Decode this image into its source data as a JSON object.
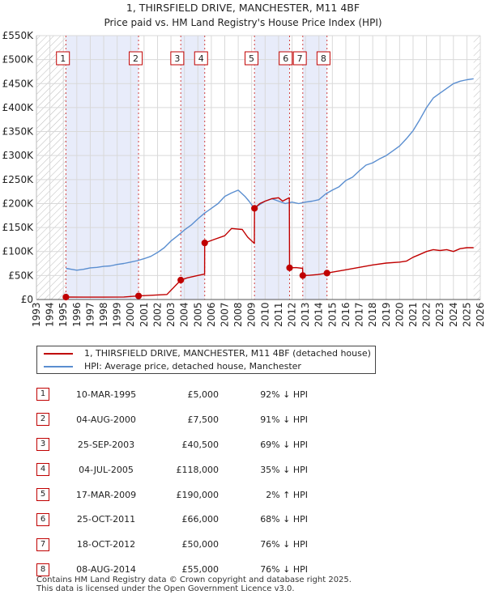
{
  "chart_data": {
    "type": "line",
    "title": "1, THIRSFIELD DRIVE, MANCHESTER, M11 4BF",
    "subtitle": "Price paid vs. HM Land Registry's House Price Index (HPI)",
    "x_range": [
      1993,
      2026
    ],
    "ylim": [
      0,
      550000
    ],
    "x_ticks": [
      "1993",
      "1994",
      "1995",
      "1996",
      "1997",
      "1998",
      "1999",
      "2000",
      "2001",
      "2002",
      "2003",
      "2004",
      "2005",
      "2006",
      "2007",
      "2008",
      "2009",
      "2010",
      "2011",
      "2012",
      "2013",
      "2014",
      "2015",
      "2016",
      "2017",
      "2018",
      "2019",
      "2020",
      "2021",
      "2022",
      "2023",
      "2024",
      "2025",
      "2026"
    ],
    "y_ticks": [
      {
        "value": 0,
        "label": "£0"
      },
      {
        "value": 50000,
        "label": "£50K"
      },
      {
        "value": 100000,
        "label": "£100K"
      },
      {
        "value": 150000,
        "label": "£150K"
      },
      {
        "value": 200000,
        "label": "£200K"
      },
      {
        "value": 250000,
        "label": "£250K"
      },
      {
        "value": 300000,
        "label": "£300K"
      },
      {
        "value": 350000,
        "label": "£350K"
      },
      {
        "value": 400000,
        "label": "£400K"
      },
      {
        "value": 450000,
        "label": "£450K"
      },
      {
        "value": 500000,
        "label": "£500K"
      },
      {
        "value": 550000,
        "label": "£550K"
      }
    ],
    "grid": true,
    "series": [
      {
        "name": "1, THIRSFIELD DRIVE, MANCHESTER, M11 4BF (detached house)",
        "color": "#c00000",
        "points": [
          [
            1995.19,
            5000
          ],
          [
            1996.5,
            4850
          ],
          [
            1998.0,
            4900
          ],
          [
            1999.5,
            5300
          ],
          [
            2000.59,
            7500
          ],
          [
            2001.5,
            8800
          ],
          [
            2002.7,
            10500
          ],
          [
            2003.73,
            40500
          ],
          [
            2004.2,
            45000
          ],
          [
            2004.9,
            49500
          ],
          [
            2005.5,
            53000
          ],
          [
            2005.51,
            118000
          ],
          [
            2006.2,
            125000
          ],
          [
            2007.0,
            133000
          ],
          [
            2007.5,
            148000
          ],
          [
            2008.3,
            146000
          ],
          [
            2008.7,
            130000
          ],
          [
            2009.2,
            117000
          ],
          [
            2009.21,
            190000
          ],
          [
            2009.6,
            200000
          ],
          [
            2010.0,
            205000
          ],
          [
            2010.5,
            210000
          ],
          [
            2011.0,
            212000
          ],
          [
            2011.3,
            205000
          ],
          [
            2011.5,
            208000
          ],
          [
            2011.8,
            212000
          ],
          [
            2011.82,
            66000
          ],
          [
            2012.3,
            66500
          ],
          [
            2012.79,
            65000
          ],
          [
            2012.8,
            50000
          ],
          [
            2013.3,
            50500
          ],
          [
            2013.9,
            52000
          ],
          [
            2014.6,
            55000
          ],
          [
            2015.0,
            57000
          ],
          [
            2016.0,
            62000
          ],
          [
            2017.0,
            67000
          ],
          [
            2018.0,
            72000
          ],
          [
            2019.0,
            76000
          ],
          [
            2020.0,
            78000
          ],
          [
            2020.5,
            80000
          ],
          [
            2021.0,
            88000
          ],
          [
            2021.5,
            94000
          ],
          [
            2022.0,
            100000
          ],
          [
            2022.5,
            104000
          ],
          [
            2023.0,
            102000
          ],
          [
            2023.5,
            104000
          ],
          [
            2024.0,
            100000
          ],
          [
            2024.5,
            106000
          ],
          [
            2025.0,
            108000
          ],
          [
            2025.5,
            108000
          ]
        ]
      },
      {
        "name": "HPI: Average price, detached house, Manchester",
        "color": "#5a8ed0",
        "points": [
          [
            1995.2,
            65000
          ],
          [
            1995.6,
            63000
          ],
          [
            1996.0,
            61000
          ],
          [
            1996.5,
            63000
          ],
          [
            1997.0,
            66000
          ],
          [
            1997.5,
            67000
          ],
          [
            1998.0,
            69000
          ],
          [
            1998.5,
            70000
          ],
          [
            1999.0,
            73000
          ],
          [
            1999.5,
            75000
          ],
          [
            2000.0,
            78000
          ],
          [
            2000.5,
            81000
          ],
          [
            2001.0,
            85000
          ],
          [
            2001.5,
            90000
          ],
          [
            2002.0,
            98000
          ],
          [
            2002.5,
            108000
          ],
          [
            2003.0,
            122000
          ],
          [
            2003.5,
            133000
          ],
          [
            2004.0,
            145000
          ],
          [
            2004.5,
            155000
          ],
          [
            2005.0,
            168000
          ],
          [
            2005.5,
            180000
          ],
          [
            2006.0,
            190000
          ],
          [
            2006.5,
            200000
          ],
          [
            2007.0,
            215000
          ],
          [
            2007.5,
            222000
          ],
          [
            2008.0,
            228000
          ],
          [
            2008.5,
            215000
          ],
          [
            2008.8,
            205000
          ],
          [
            2009.2,
            190000
          ],
          [
            2009.5,
            196000
          ],
          [
            2010.0,
            205000
          ],
          [
            2010.5,
            210000
          ],
          [
            2011.0,
            205000
          ],
          [
            2011.5,
            200000
          ],
          [
            2012.0,
            203000
          ],
          [
            2012.5,
            200000
          ],
          [
            2013.0,
            203000
          ],
          [
            2013.5,
            205000
          ],
          [
            2014.0,
            208000
          ],
          [
            2014.5,
            220000
          ],
          [
            2015.0,
            228000
          ],
          [
            2015.5,
            235000
          ],
          [
            2016.0,
            248000
          ],
          [
            2016.5,
            255000
          ],
          [
            2017.0,
            268000
          ],
          [
            2017.5,
            280000
          ],
          [
            2018.0,
            285000
          ],
          [
            2018.5,
            293000
          ],
          [
            2019.0,
            300000
          ],
          [
            2019.5,
            310000
          ],
          [
            2020.0,
            320000
          ],
          [
            2020.5,
            335000
          ],
          [
            2021.0,
            352000
          ],
          [
            2021.5,
            375000
          ],
          [
            2022.0,
            400000
          ],
          [
            2022.5,
            420000
          ],
          [
            2023.0,
            430000
          ],
          [
            2023.5,
            440000
          ],
          [
            2024.0,
            450000
          ],
          [
            2024.5,
            455000
          ],
          [
            2025.0,
            458000
          ],
          [
            2025.5,
            460000
          ]
        ]
      }
    ],
    "transactions": [
      {
        "num": "1",
        "date": "10-MAR-1995",
        "price": "£5,000",
        "hpi": "92% ↓ HPI",
        "x": 1995.19,
        "y": 5000,
        "label_year": 1994.97
      },
      {
        "num": "2",
        "date": "04-AUG-2000",
        "price": "£7,500",
        "hpi": "91% ↓ HPI",
        "x": 2000.59,
        "y": 7500,
        "label_year": 2000.38
      },
      {
        "num": "3",
        "date": "25-SEP-2003",
        "price": "£40,500",
        "hpi": "69% ↓ HPI",
        "x": 2003.73,
        "y": 40500,
        "label_year": 2003.47
      },
      {
        "num": "4",
        "date": "04-JUL-2005",
        "price": "£118,000",
        "hpi": "35% ↓ HPI",
        "x": 2005.51,
        "y": 118000,
        "label_year": 2005.24
      },
      {
        "num": "5",
        "date": "17-MAR-2009",
        "price": "£190,000",
        "hpi": "2% ↑ HPI",
        "x": 2009.21,
        "y": 190000,
        "label_year": 2008.99
      },
      {
        "num": "6",
        "date": "25-OCT-2011",
        "price": "£66,000",
        "hpi": "68% ↓ HPI",
        "x": 2011.82,
        "y": 66000,
        "label_year": 2011.53
      },
      {
        "num": "7",
        "date": "18-OCT-2012",
        "price": "£50,000",
        "hpi": "76% ↓ HPI",
        "x": 2012.8,
        "y": 50000,
        "label_year": 2012.58
      },
      {
        "num": "8",
        "date": "08-AUG-2014",
        "price": "£55,000",
        "hpi": "76% ↓ HPI",
        "x": 2014.6,
        "y": 55000,
        "label_year": 2014.34
      }
    ],
    "shaded_ranges": [
      [
        1995.19,
        2000.59
      ],
      [
        2003.73,
        2005.51
      ],
      [
        2009.21,
        2011.82
      ],
      [
        2012.8,
        2014.6
      ]
    ],
    "hatched_ranges": [
      [
        1993,
        1995.19
      ],
      [
        2025.5,
        2026
      ]
    ]
  },
  "legend": {
    "property_label": "1, THIRSFIELD DRIVE, MANCHESTER, M11 4BF (detached house)",
    "hpi_label": "HPI: Average price, detached house, Manchester",
    "property_color": "#c00000",
    "hpi_color": "#5a8ed0"
  },
  "footer": {
    "line1": "Contains HM Land Registry data © Crown copyright and database right 2025.",
    "line2": "This data is licensed under the Open Government Licence v3.0."
  }
}
